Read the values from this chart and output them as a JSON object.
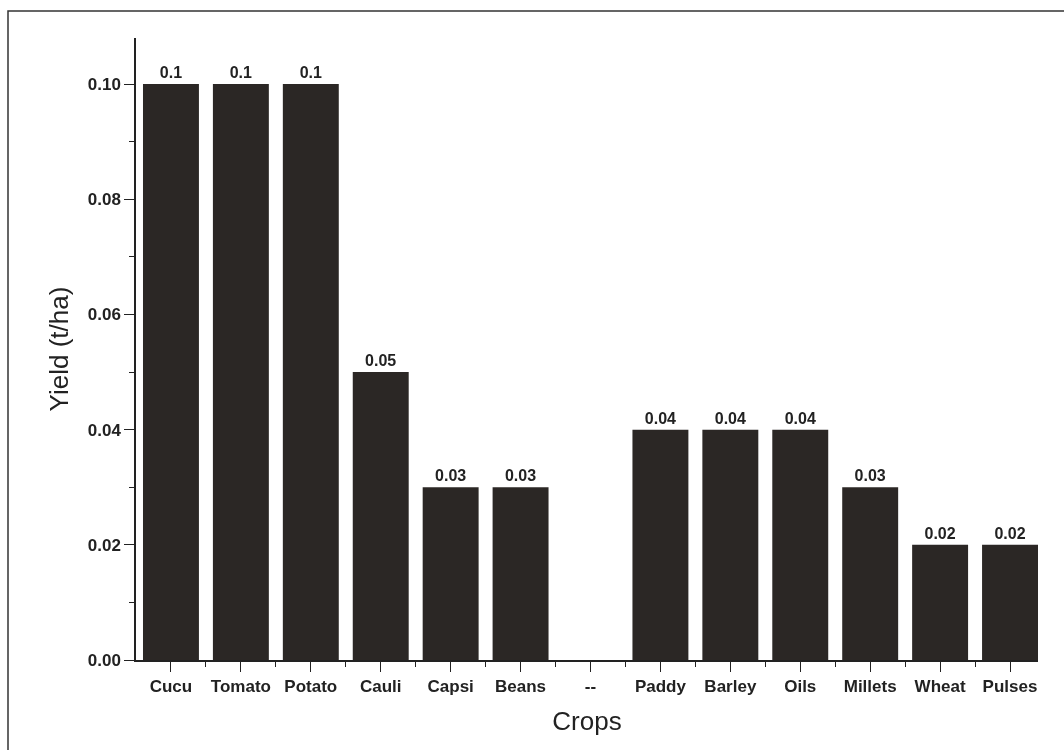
{
  "chart_data": {
    "type": "bar",
    "xlabel": "Crops",
    "ylabel": "Yield (t/ha)",
    "categories": [
      "Cucu",
      "Tomato",
      "Potato",
      "Cauli",
      "Capsi",
      "Beans",
      "--",
      "Paddy",
      "Barley",
      "Oils",
      "Millets",
      "Wheat",
      "Pulses"
    ],
    "values": [
      0.1,
      0.1,
      0.1,
      0.05,
      0.03,
      0.03,
      null,
      0.04,
      0.04,
      0.04,
      0.03,
      0.02,
      0.02
    ],
    "color": "#2b2725",
    "data_labels": true,
    "ylim": [
      0,
      0.108
    ],
    "yticks": [
      {
        "value": 0,
        "label": "0.00"
      },
      {
        "value": 0.01,
        "label": null
      },
      {
        "value": 0.02,
        "label": "0.02"
      },
      {
        "value": 0.03,
        "label": null
      },
      {
        "value": 0.04,
        "label": "0.04"
      },
      {
        "value": 0.05,
        "label": null
      },
      {
        "value": 0.06,
        "label": "0.06"
      },
      {
        "value": 0.07,
        "label": null
      },
      {
        "value": 0.08,
        "label": "0.08"
      },
      {
        "value": 0.09,
        "label": null
      },
      {
        "value": 0.1,
        "label": "0.10"
      }
    ]
  }
}
